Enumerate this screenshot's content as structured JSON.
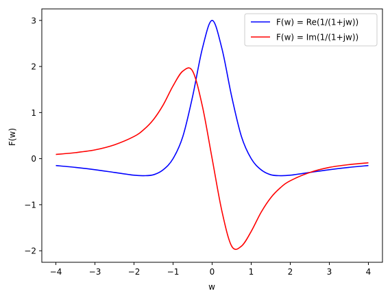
{
  "chart_data": {
    "type": "line",
    "title": "",
    "xlabel": "w",
    "ylabel": "F(w)",
    "xlim": [
      -4.36,
      4.36
    ],
    "ylim": [
      -2.25,
      3.25
    ],
    "xticks": [
      -4,
      -3,
      -2,
      -1,
      0,
      1,
      2,
      3,
      4
    ],
    "xtick_labels": [
      "−4",
      "−3",
      "−2",
      "−1",
      "0",
      "1",
      "2",
      "3",
      "4"
    ],
    "yticks": [
      -2,
      -1,
      0,
      1,
      2,
      3
    ],
    "ytick_labels": [
      "−2",
      "−1",
      "0",
      "1",
      "2",
      "3"
    ],
    "grid": false,
    "legend_position": "top-right",
    "x": [
      -4.0,
      -3.5,
      -3.0,
      -2.5,
      -2.0,
      -1.75,
      -1.5,
      -1.25,
      -1.0,
      -0.75,
      -0.5,
      -0.25,
      0.0,
      0.25,
      0.5,
      0.75,
      1.0,
      1.25,
      1.5,
      1.75,
      2.0,
      2.5,
      3.0,
      3.5,
      4.0
    ],
    "series": [
      {
        "name": "F(w) = Re(1/(1+jw))",
        "color": "#0000ff",
        "values": [
          -0.15,
          -0.19,
          -0.24,
          -0.3,
          -0.36,
          -0.37,
          -0.35,
          -0.24,
          0.0,
          0.48,
          1.35,
          2.39,
          3.0,
          2.39,
          1.35,
          0.48,
          0.0,
          -0.24,
          -0.35,
          -0.37,
          -0.36,
          -0.3,
          -0.24,
          -0.19,
          -0.15
        ]
      },
      {
        "name": "F(w) = Im(1/(1+jw))",
        "color": "#ff0000",
        "values": [
          0.09,
          0.13,
          0.19,
          0.3,
          0.48,
          0.63,
          0.85,
          1.17,
          1.58,
          1.9,
          1.9,
          1.14,
          0.0,
          -1.14,
          -1.9,
          -1.9,
          -1.58,
          -1.17,
          -0.85,
          -0.63,
          -0.48,
          -0.3,
          -0.19,
          -0.13,
          -0.09
        ]
      }
    ]
  }
}
